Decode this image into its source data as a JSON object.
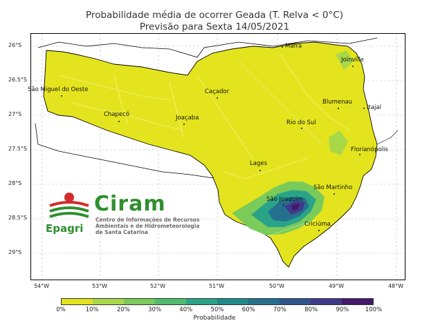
{
  "title": {
    "line1": "Probabilidade média de ocorrer Geada (T. Relva < 0°C)",
    "line2": "Previsão para Sexta 14/05/2021"
  },
  "axes": {
    "lat_labels": [
      "26°S",
      "26.5°S",
      "27°S",
      "27.5°S",
      "28°S",
      "28.5°S",
      "29°S"
    ],
    "lon_labels": [
      "54°W",
      "53°W",
      "52°W",
      "51°W",
      "50°W",
      "49°W",
      "48°W"
    ]
  },
  "cities": [
    {
      "name": "Mafra"
    },
    {
      "name": "Joinville"
    },
    {
      "name": "São Miguel do Oeste"
    },
    {
      "name": "Caçador"
    },
    {
      "name": "Blumenau"
    },
    {
      "name": "Itajaí"
    },
    {
      "name": "Chapecó"
    },
    {
      "name": "Joaçaba"
    },
    {
      "name": "Rio do Sul"
    },
    {
      "name": "Florianópolis"
    },
    {
      "name": "Lages"
    },
    {
      "name": "São Martinho"
    },
    {
      "name": "São Joaquim"
    },
    {
      "name": "Criciúma"
    }
  ],
  "colorbar": {
    "label": "Probabilidade",
    "ticks": [
      "0%",
      "10%",
      "20%",
      "30%",
      "40%",
      "50%",
      "60%",
      "70%",
      "80%",
      "90%",
      "100%"
    ],
    "colors": [
      "#e4e41e",
      "#a8d848",
      "#7acb5a",
      "#4fbc6e",
      "#2aa488",
      "#1f8a8c",
      "#25708e",
      "#30548c",
      "#3f3a8a",
      "#46196b"
    ]
  },
  "logo": {
    "name": "Ciram",
    "subtitle_lines": [
      "Centro de Informações de Recursos",
      "Ambientais e de Hidrometeorologia",
      "de Santa Catarina"
    ],
    "org": "Epagri"
  }
}
